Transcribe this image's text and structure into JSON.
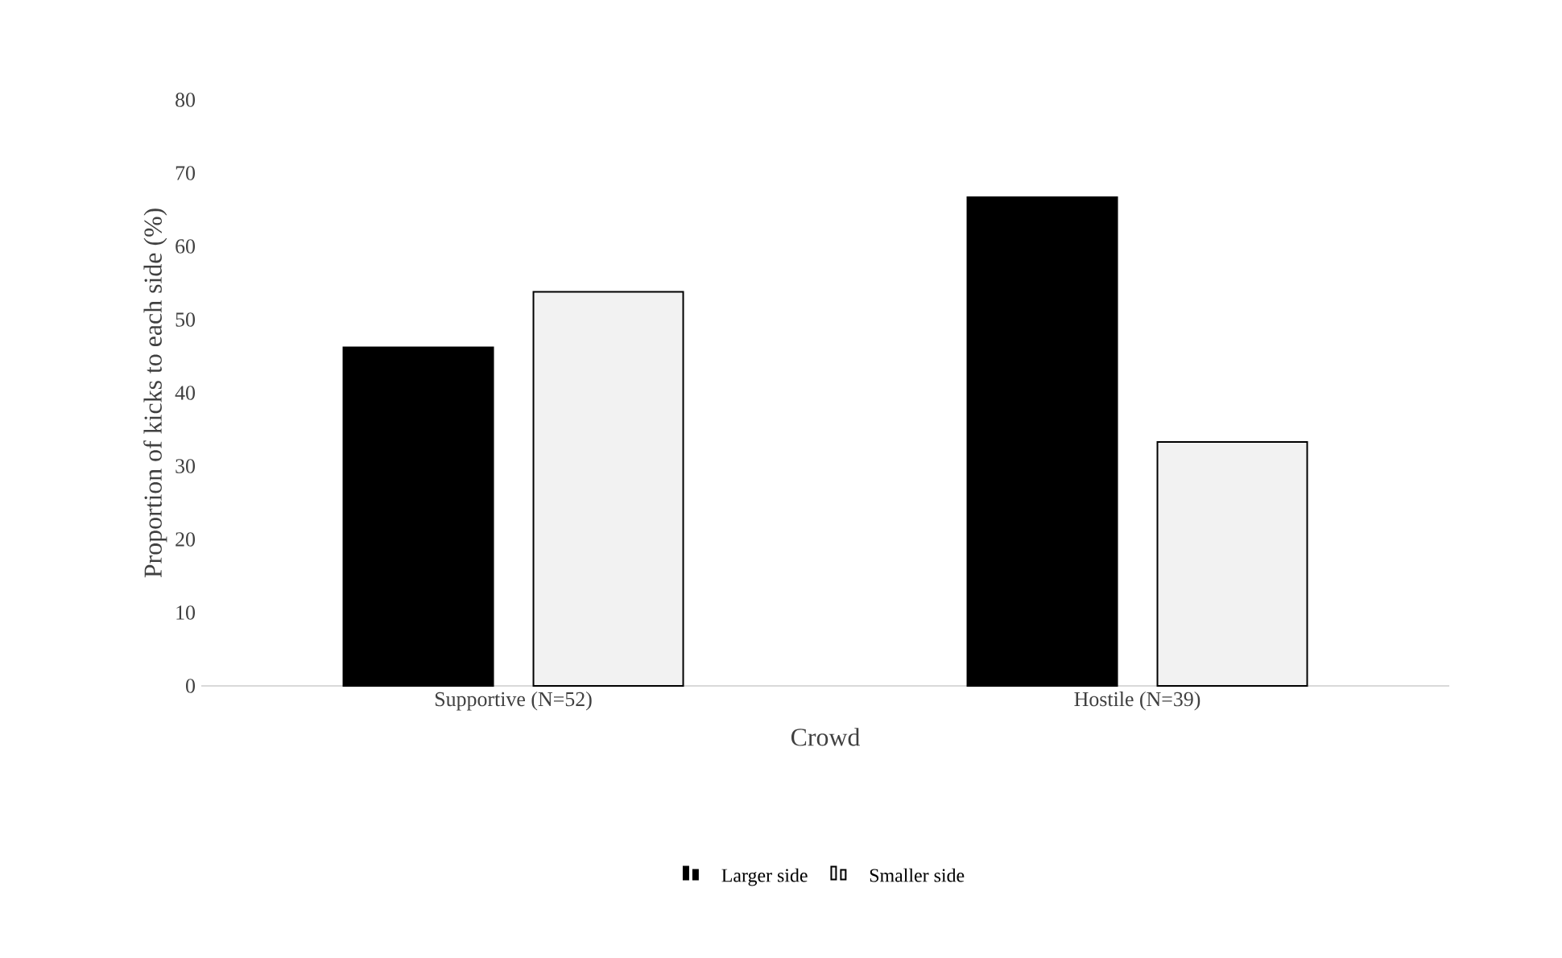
{
  "chart_data": {
    "type": "bar",
    "categories": [
      "Supportive (N=52)",
      "Hostile (N=39)"
    ],
    "xlabel": "Crowd",
    "ylabel": "Proportion of kicks to each side (%)",
    "series": [
      {
        "name": "Larger side",
        "color": "#000000",
        "values": [
          46.2,
          66.7
        ]
      },
      {
        "name": "Smaller side",
        "color": "#f2f2f2",
        "values": [
          53.8,
          33.3
        ]
      }
    ],
    "ylim": [
      0,
      80
    ],
    "yticks": [
      0,
      10,
      20,
      30,
      40,
      50,
      60,
      70,
      80
    ],
    "legend": "bottom"
  }
}
